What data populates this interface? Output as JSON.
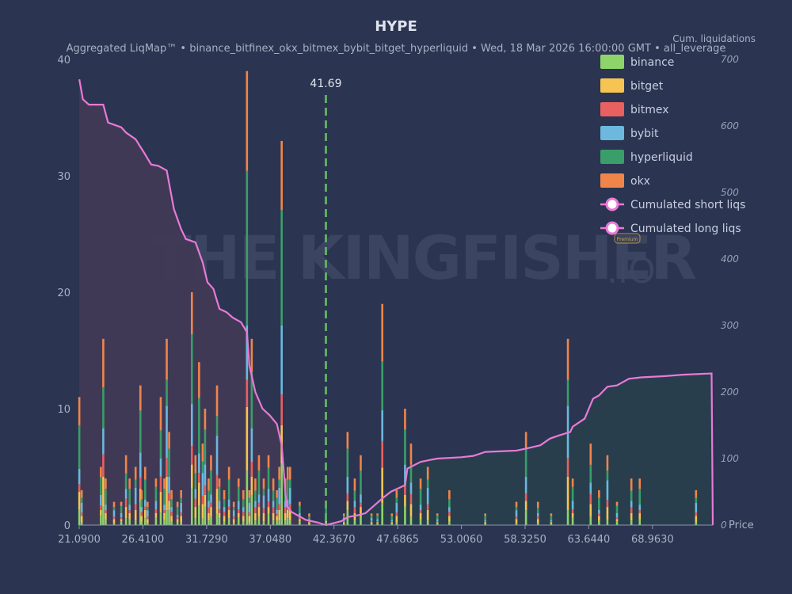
{
  "chart_data": {
    "type": "bar",
    "title": "HYPE",
    "subtitle": "Aggregated LiqMap™  •  binance_bitfinex_okx_bitmex_bybit_bitget_hyperliquid  •  Wed, 18 Mar 2026 16:00:00 GMT  •  all_leverage",
    "right_axis_label": "Cum. liquidations",
    "xlabel": "Price",
    "x_range": [
      21.09,
      74.0
    ],
    "ylim": [
      0,
      40
    ],
    "y2lim": [
      0,
      700
    ],
    "y_ticks": [
      "0",
      "10",
      "20",
      "30",
      "40"
    ],
    "y2_ticks": [
      "0",
      "100",
      "200",
      "300",
      "400",
      "500",
      "600",
      "700"
    ],
    "x_ticks": [
      "21.0900",
      "26.4100",
      "31.7290",
      "37.0480",
      "42.3670",
      "47.6865",
      "53.0060",
      "58.3250",
      "63.6440",
      "68.9630"
    ],
    "current_price": 41.69,
    "current_price_label": "41.69",
    "grid": false,
    "legend_position": "top-right",
    "watermark": "THE KINGFISHER.IO",
    "watermark_badge": "Premium",
    "exchanges": [
      "binance",
      "bitget",
      "bitmex",
      "bybit",
      "hyperliquid",
      "okx"
    ],
    "colors": {
      "binance": "#8fd36b",
      "bitget": "#f5c453",
      "bitmex": "#e8605f",
      "bybit": "#6cb8de",
      "hyperliquid": "#3a9e6a",
      "okx": "#f0854a",
      "cum_line": "#e87ad6",
      "short_fill": "#283f4d",
      "long_fill": "#433a55",
      "current_price_line": "#5fae62"
    },
    "legend": [
      {
        "name": "binance",
        "color": "#8fd36b",
        "kind": "bar"
      },
      {
        "name": "bitget",
        "color": "#f5c453",
        "kind": "bar"
      },
      {
        "name": "bitmex",
        "color": "#e8605f",
        "kind": "bar"
      },
      {
        "name": "bybit",
        "color": "#6cb8de",
        "kind": "bar"
      },
      {
        "name": "hyperliquid",
        "color": "#3a9e6a",
        "kind": "bar"
      },
      {
        "name": "okx",
        "color": "#f0854a",
        "kind": "bar"
      },
      {
        "name": "Cumulated short liqs",
        "color": "#e87ad6",
        "kind": "line"
      },
      {
        "name": "Cumulated long liqs",
        "color": "#e87ad6",
        "kind": "line"
      }
    ],
    "bars": [
      [
        21.1,
        11.0
      ],
      [
        21.3,
        3.0
      ],
      [
        22.9,
        5.0
      ],
      [
        23.1,
        16.0
      ],
      [
        23.3,
        4.0
      ],
      [
        24.0,
        2.0
      ],
      [
        24.6,
        2.0
      ],
      [
        25.0,
        6.0
      ],
      [
        25.3,
        4.0
      ],
      [
        25.8,
        5.0
      ],
      [
        26.2,
        12.0
      ],
      [
        26.3,
        3.0
      ],
      [
        26.6,
        5.0
      ],
      [
        26.8,
        2.0
      ],
      [
        27.5,
        4.0
      ],
      [
        27.9,
        11.0
      ],
      [
        28.2,
        4.0
      ],
      [
        28.4,
        16.0
      ],
      [
        28.6,
        8.0
      ],
      [
        28.8,
        3.0
      ],
      [
        29.3,
        2.0
      ],
      [
        29.6,
        3.0
      ],
      [
        30.5,
        20.0
      ],
      [
        30.8,
        6.0
      ],
      [
        31.1,
        14.0
      ],
      [
        31.4,
        7.0
      ],
      [
        31.6,
        10.0
      ],
      [
        31.9,
        4.0
      ],
      [
        32.1,
        6.0
      ],
      [
        32.6,
        12.0
      ],
      [
        32.8,
        4.0
      ],
      [
        33.2,
        3.0
      ],
      [
        33.6,
        5.0
      ],
      [
        34.0,
        2.0
      ],
      [
        34.4,
        4.0
      ],
      [
        34.8,
        3.0
      ],
      [
        35.1,
        39.0
      ],
      [
        35.3,
        3.0
      ],
      [
        35.5,
        16.0
      ],
      [
        35.8,
        4.0
      ],
      [
        36.1,
        6.0
      ],
      [
        36.5,
        4.0
      ],
      [
        36.9,
        6.0
      ],
      [
        37.3,
        4.0
      ],
      [
        37.6,
        3.0
      ],
      [
        37.8,
        5.0
      ],
      [
        38.0,
        33.0
      ],
      [
        38.3,
        4.0
      ],
      [
        38.5,
        5.0
      ],
      [
        38.7,
        5.0
      ],
      [
        39.5,
        2.0
      ],
      [
        40.3,
        1.0
      ],
      [
        41.7,
        2.0
      ],
      [
        43.2,
        1.0
      ],
      [
        43.5,
        8.0
      ],
      [
        44.1,
        4.0
      ],
      [
        44.6,
        6.0
      ],
      [
        45.5,
        1.0
      ],
      [
        46.0,
        1.0
      ],
      [
        46.4,
        19.0
      ],
      [
        47.2,
        1.0
      ],
      [
        47.6,
        3.0
      ],
      [
        48.3,
        10.0
      ],
      [
        48.8,
        7.0
      ],
      [
        49.6,
        4.0
      ],
      [
        50.2,
        5.0
      ],
      [
        51.0,
        1.0
      ],
      [
        52.0,
        3.0
      ],
      [
        55.0,
        1.0
      ],
      [
        57.6,
        2.0
      ],
      [
        58.4,
        8.0
      ],
      [
        59.4,
        2.0
      ],
      [
        60.5,
        1.0
      ],
      [
        61.9,
        16.0
      ],
      [
        62.3,
        4.0
      ],
      [
        63.8,
        7.0
      ],
      [
        64.5,
        3.0
      ],
      [
        65.2,
        6.0
      ],
      [
        66.0,
        2.0
      ],
      [
        67.2,
        4.0
      ],
      [
        67.9,
        4.0
      ],
      [
        72.6,
        3.0
      ]
    ],
    "cumulative_long": [
      [
        21.1,
        670
      ],
      [
        21.4,
        640
      ],
      [
        21.9,
        632
      ],
      [
        23.1,
        632
      ],
      [
        23.5,
        605
      ],
      [
        24.6,
        598
      ],
      [
        25.0,
        590
      ],
      [
        25.8,
        580
      ],
      [
        26.5,
        560
      ],
      [
        27.1,
        542
      ],
      [
        27.7,
        540
      ],
      [
        28.4,
        533
      ],
      [
        29.0,
        475
      ],
      [
        29.6,
        445
      ],
      [
        30.0,
        430
      ],
      [
        30.8,
        425
      ],
      [
        31.4,
        395
      ],
      [
        31.8,
        365
      ],
      [
        32.3,
        355
      ],
      [
        32.8,
        325
      ],
      [
        33.4,
        320
      ],
      [
        33.9,
        312
      ],
      [
        34.6,
        305
      ],
      [
        35.1,
        290
      ],
      [
        35.3,
        240
      ],
      [
        35.8,
        200
      ],
      [
        36.4,
        175
      ],
      [
        37.0,
        165
      ],
      [
        37.6,
        152
      ],
      [
        38.0,
        120
      ],
      [
        38.4,
        30
      ],
      [
        38.8,
        20
      ],
      [
        40.0,
        8
      ],
      [
        41.0,
        4
      ],
      [
        41.69,
        0
      ]
    ],
    "cumulative_short": [
      [
        41.69,
        0
      ],
      [
        43.0,
        6
      ],
      [
        43.5,
        12
      ],
      [
        44.4,
        15
      ],
      [
        45.0,
        18
      ],
      [
        46.4,
        40
      ],
      [
        47.1,
        50
      ],
      [
        48.3,
        60
      ],
      [
        48.5,
        85
      ],
      [
        49.6,
        95
      ],
      [
        50.4,
        98
      ],
      [
        51.0,
        100
      ],
      [
        53.0,
        102
      ],
      [
        54.0,
        104
      ],
      [
        55.0,
        110
      ],
      [
        57.6,
        112
      ],
      [
        58.4,
        115
      ],
      [
        59.6,
        120
      ],
      [
        60.4,
        130
      ],
      [
        61.2,
        135
      ],
      [
        62.1,
        140
      ],
      [
        62.3,
        148
      ],
      [
        63.3,
        160
      ],
      [
        64.0,
        190
      ],
      [
        64.5,
        195
      ],
      [
        65.2,
        208
      ],
      [
        66.0,
        210
      ],
      [
        67.0,
        220
      ],
      [
        68.0,
        222
      ],
      [
        70.0,
        224
      ],
      [
        71.5,
        226
      ],
      [
        73.9,
        228
      ],
      [
        74.0,
        0
      ]
    ]
  }
}
